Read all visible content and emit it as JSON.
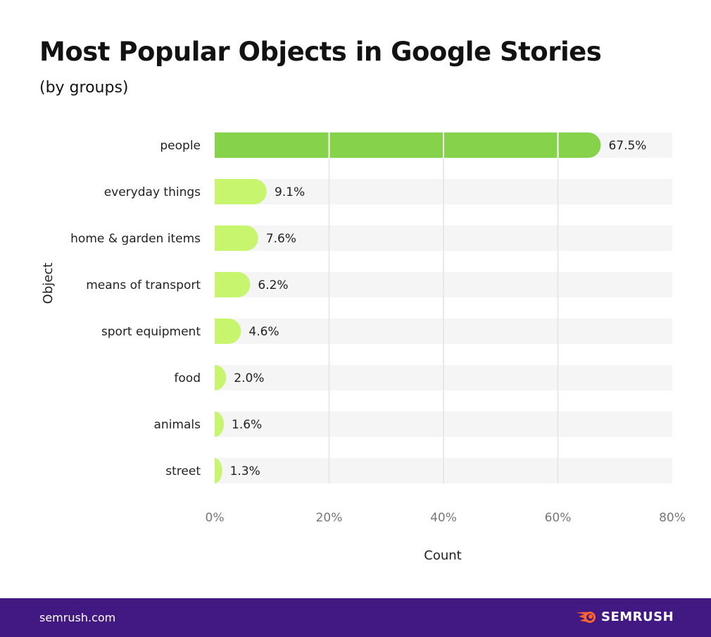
{
  "title": "Most Popular Objects in Google Stories",
  "subtitle": "(by groups)",
  "chart_data": {
    "type": "bar",
    "orientation": "horizontal",
    "categories": [
      "people",
      "everyday things",
      "home & garden items",
      "means of transport",
      "sport equipment",
      "food",
      "animals",
      "street"
    ],
    "values": [
      67.5,
      9.1,
      7.6,
      6.2,
      4.6,
      2.0,
      1.6,
      1.3
    ],
    "data_labels": [
      "67.5%",
      "9.1%",
      "7.6%",
      "6.2%",
      "4.6%",
      "2.0%",
      "1.6%",
      "1.3%"
    ],
    "xlabel": "Count",
    "ylabel": "Object",
    "xlim": [
      0,
      80
    ],
    "xticks": [
      "0%",
      "20%",
      "40%",
      "60%",
      "80%"
    ],
    "grid": true,
    "colors": {
      "top": "#86d24a",
      "other": "#c8f56e",
      "track": "#f5f5f5",
      "grid": "#e8e8e8"
    }
  },
  "footer": {
    "site": "semrush.com",
    "brand": "SEMRUSH",
    "logo_icon": "semrush-fireball-icon",
    "bg": "#421983"
  }
}
